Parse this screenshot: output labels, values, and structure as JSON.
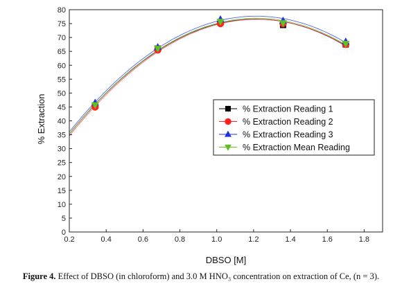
{
  "chart_data": {
    "type": "scatter",
    "xlabel": "DBSO [M]",
    "ylabel": "% Extraction",
    "xlim": [
      0.2,
      1.9
    ],
    "ylim": [
      0,
      80
    ],
    "x_ticks": [
      "0.2",
      "0.4",
      "0.6",
      "0.8",
      "1.0",
      "1.2",
      "1.4",
      "1.6",
      "1.8"
    ],
    "y_ticks": [
      "0",
      "5",
      "10",
      "15",
      "20",
      "25",
      "30",
      "35",
      "40",
      "45",
      "50",
      "55",
      "60",
      "65",
      "70",
      "75",
      "80"
    ],
    "x": [
      0.34,
      0.68,
      1.02,
      1.36,
      1.7
    ],
    "series": [
      {
        "name": "% Extraction Reading 1",
        "values": [
          45.5,
          66.0,
          75.5,
          74.5,
          67.5
        ],
        "color": "#000000",
        "marker": "square"
      },
      {
        "name": "% Extraction Reading 2",
        "values": [
          45.0,
          65.5,
          75.0,
          75.0,
          67.5
        ],
        "color": "#ff2020",
        "marker": "circle"
      },
      {
        "name": "% Extraction Reading 3",
        "values": [
          46.5,
          66.5,
          76.5,
          76.0,
          68.5
        ],
        "color": "#2030e0",
        "marker": "triangle-up"
      },
      {
        "name": "% Extraction Mean Reading",
        "values": [
          45.7,
          66.0,
          75.7,
          75.2,
          67.8
        ],
        "color": "#60c020",
        "marker": "triangle-down"
      }
    ],
    "fit_curves": true,
    "grid": false,
    "legend_position": "center-right"
  },
  "caption": {
    "label": "Figure 4.",
    "text": "Effect of DBSO (in chloroform) and 3.0 M HNO₃ concentration on extraction of Ce, (n = 3)."
  }
}
